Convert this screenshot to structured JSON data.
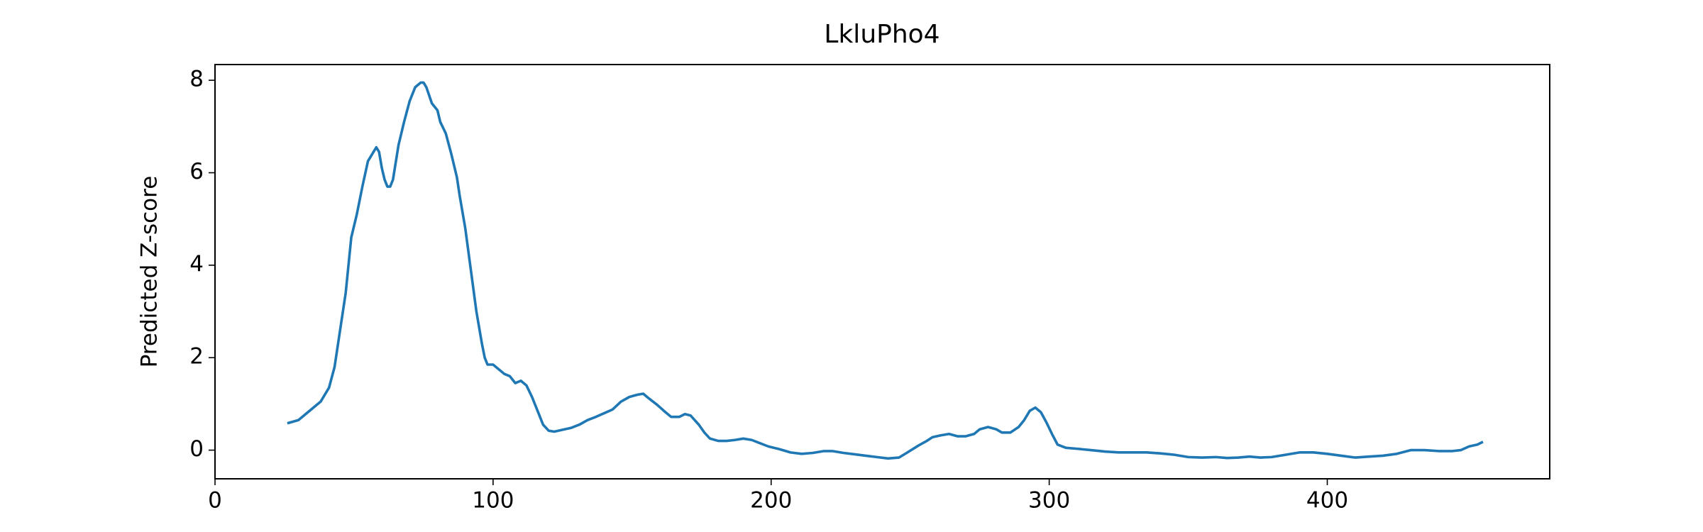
{
  "chart_data": {
    "type": "line",
    "title": "LkluPho4",
    "y_label": "Predicted Z-score",
    "color": "#1f77b4",
    "x": [
      26,
      30,
      34,
      38,
      41,
      43,
      45,
      47,
      48,
      49,
      51,
      53,
      55,
      57,
      58,
      59,
      60,
      61,
      62,
      63,
      64,
      66,
      68,
      70,
      72,
      74,
      75,
      76,
      78,
      80,
      81,
      83,
      85,
      87,
      88,
      90,
      92,
      94,
      96,
      97,
      98,
      100,
      102,
      104,
      106,
      108,
      110,
      112,
      114,
      116,
      118,
      120,
      122,
      125,
      128,
      131,
      134,
      137,
      140,
      143,
      146,
      149,
      152,
      154,
      156,
      159,
      162,
      164,
      167,
      169,
      171,
      174,
      176,
      178,
      181,
      184,
      187,
      190,
      193,
      196,
      199,
      203,
      207,
      211,
      215,
      219,
      222,
      226,
      230,
      234,
      238,
      242,
      246,
      249,
      253,
      256,
      258,
      261,
      264,
      267,
      270,
      273,
      275,
      278,
      281,
      283,
      286,
      289,
      291,
      293,
      295,
      297,
      299,
      301,
      303,
      306,
      310,
      315,
      320,
      325,
      330,
      335,
      340,
      345,
      350,
      355,
      360,
      364,
      368,
      372,
      376,
      380,
      385,
      390,
      395,
      400,
      405,
      410,
      415,
      420,
      425,
      430,
      435,
      440,
      445,
      448,
      451,
      454,
      456
    ],
    "values": [
      0.58,
      0.65,
      0.85,
      1.05,
      1.35,
      1.8,
      2.6,
      3.4,
      4.0,
      4.6,
      5.1,
      5.7,
      6.25,
      6.45,
      6.55,
      6.45,
      6.1,
      5.85,
      5.7,
      5.7,
      5.85,
      6.6,
      7.1,
      7.55,
      7.85,
      7.95,
      7.95,
      7.85,
      7.5,
      7.35,
      7.1,
      6.85,
      6.4,
      5.9,
      5.5,
      4.8,
      3.9,
      3.0,
      2.3,
      2.0,
      1.85,
      1.85,
      1.75,
      1.65,
      1.6,
      1.45,
      1.5,
      1.4,
      1.15,
      0.85,
      0.55,
      0.42,
      0.4,
      0.44,
      0.48,
      0.55,
      0.65,
      0.72,
      0.8,
      0.88,
      1.05,
      1.15,
      1.2,
      1.22,
      1.12,
      0.98,
      0.82,
      0.72,
      0.72,
      0.78,
      0.75,
      0.55,
      0.38,
      0.25,
      0.2,
      0.2,
      0.22,
      0.25,
      0.22,
      0.15,
      0.08,
      0.02,
      -0.05,
      -0.08,
      -0.06,
      -0.02,
      -0.02,
      -0.06,
      -0.09,
      -0.12,
      -0.15,
      -0.18,
      -0.16,
      -0.05,
      0.1,
      0.2,
      0.28,
      0.32,
      0.35,
      0.3,
      0.3,
      0.35,
      0.45,
      0.5,
      0.45,
      0.38,
      0.38,
      0.5,
      0.65,
      0.85,
      0.92,
      0.82,
      0.6,
      0.35,
      0.12,
      0.05,
      0.03,
      0.0,
      -0.03,
      -0.05,
      -0.05,
      -0.05,
      -0.07,
      -0.1,
      -0.15,
      -0.16,
      -0.15,
      -0.17,
      -0.16,
      -0.14,
      -0.16,
      -0.15,
      -0.1,
      -0.05,
      -0.05,
      -0.08,
      -0.12,
      -0.16,
      -0.14,
      -0.12,
      -0.08,
      0.0,
      0.0,
      -0.02,
      -0.02,
      0.0,
      0.08,
      0.12,
      0.18
    ],
    "xlim": [
      0,
      480
    ],
    "ylim": [
      -0.62,
      8.34
    ],
    "xticks": [
      0,
      100,
      200,
      300,
      400
    ],
    "yticks": [
      0,
      2,
      4,
      6,
      8
    ],
    "grid": false
  }
}
